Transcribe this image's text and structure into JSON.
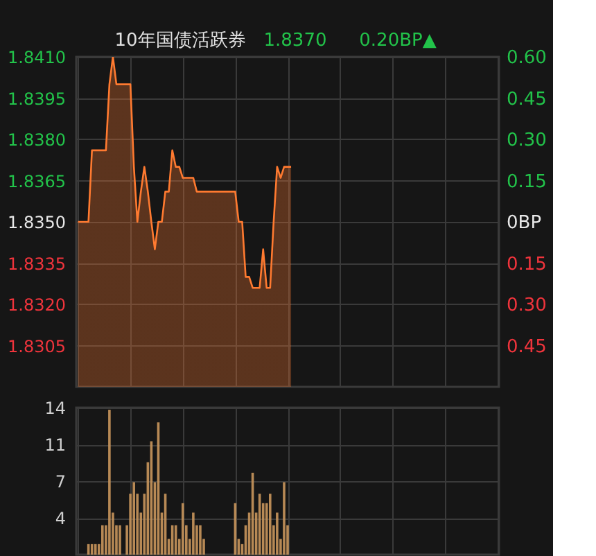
{
  "chart_data": [
    {
      "type": "line",
      "title": "10年国债活跃券",
      "annotations": [
        "1.8370",
        "0.20BP▲"
      ],
      "categories": [
        null,
        null,
        null,
        null,
        null,
        null,
        null,
        null,
        null,
        null,
        null,
        null,
        null,
        null,
        null,
        null,
        null,
        null,
        null,
        null,
        null,
        null,
        null,
        null,
        null,
        null,
        null,
        null,
        null,
        null,
        null,
        null,
        null,
        null,
        null,
        null,
        null,
        null,
        null,
        null,
        null,
        null,
        null,
        null,
        null,
        null,
        null,
        null,
        null,
        null,
        null,
        null,
        null,
        null,
        null,
        null,
        null,
        null,
        null,
        null,
        null,
        null,
        null,
        null,
        null,
        null,
        null,
        null,
        null,
        null,
        null,
        null,
        null,
        null,
        null,
        null,
        null,
        null,
        null,
        null,
        null,
        null,
        null,
        null,
        null,
        null,
        null,
        null,
        null,
        null,
        null,
        null,
        null,
        null,
        null,
        null,
        null,
        null,
        null,
        null,
        null,
        null,
        null,
        null,
        null,
        null,
        null,
        null,
        null,
        null,
        null,
        null,
        null,
        null,
        null,
        null,
        null,
        null,
        null,
        null,
        null
      ],
      "series": [
        {
          "type": "area",
          "color": "#ff7a30",
          "values": [
            1.835,
            1.835,
            1.835,
            1.835,
            1.8376,
            1.8376,
            1.8376,
            1.8376,
            1.8376,
            1.84,
            1.841,
            1.84,
            1.84,
            1.84,
            1.84,
            1.84,
            1.837,
            1.835,
            1.8361,
            1.837,
            1.8361,
            1.835,
            1.834,
            1.835,
            1.835,
            1.8361,
            1.8361,
            1.8376,
            1.837,
            1.837,
            1.8366,
            1.8366,
            1.8366,
            1.8366,
            1.8361,
            1.8361,
            1.8361,
            1.8361,
            1.8361,
            1.8361,
            1.8361,
            1.8361,
            1.8361,
            1.8361,
            1.8361,
            1.8361,
            1.835,
            1.835,
            1.833,
            1.833,
            1.8326,
            1.8326,
            1.8326,
            1.834,
            1.8326,
            1.8326,
            1.835,
            1.837,
            1.8366,
            1.837,
            1.837,
            1.837,
            null,
            null,
            null,
            null,
            null,
            null,
            null,
            null,
            null,
            null,
            null,
            null,
            null,
            null,
            null,
            null,
            null,
            null,
            null,
            null,
            null,
            null,
            null,
            null,
            null,
            null,
            null,
            null,
            null,
            null,
            null,
            null,
            null,
            null,
            null,
            null,
            null,
            null,
            null,
            null,
            null,
            null,
            null,
            null,
            null,
            null,
            null,
            null,
            null,
            null,
            null,
            null,
            null,
            null,
            null,
            null,
            null,
            null,
            null
          ]
        }
      ],
      "ylim": [
        1.829,
        1.841
      ],
      "yticks": [
        {
          "value": 1.8305,
          "label": "1.8305"
        },
        {
          "value": 1.832,
          "label": "1.8320"
        },
        {
          "value": 1.8335,
          "label": "1.8335"
        },
        {
          "value": 1.835,
          "label": "1.8350"
        },
        {
          "value": 1.8365,
          "label": "1.8365"
        },
        {
          "value": 1.838,
          "label": "1.8380"
        },
        {
          "value": 1.8395,
          "label": "1.8395"
        },
        {
          "value": 1.841,
          "label": "1.8410"
        }
      ],
      "y2lim": [
        -0.6,
        0.6
      ],
      "y2ticks": [
        {
          "value": -0.45,
          "label": "0.45"
        },
        {
          "value": -0.3,
          "label": "0.30"
        },
        {
          "value": -0.15,
          "label": "0.15"
        },
        {
          "value": 0,
          "label": "0BP"
        },
        {
          "value": 0.15,
          "label": "0.15"
        },
        {
          "value": 0.3,
          "label": "0.30"
        },
        {
          "value": 0.45,
          "label": "0.45"
        },
        {
          "value": 0.6,
          "label": "0.60"
        }
      ],
      "grid": true,
      "tick_labels": "y"
    },
    {
      "type": "bar",
      "categories": [
        null,
        null,
        null,
        null,
        null,
        null,
        null,
        null,
        null,
        null,
        null,
        null,
        null,
        null,
        null,
        null,
        null,
        null,
        null,
        null,
        null,
        null,
        null,
        null,
        null,
        null,
        null,
        null,
        null,
        null,
        null,
        null,
        null,
        null,
        null,
        null,
        null,
        null,
        null,
        null,
        null,
        null,
        null,
        null,
        null,
        null,
        null,
        null,
        null,
        null,
        null,
        null,
        null,
        null,
        null,
        null,
        null,
        null,
        null,
        null,
        null,
        null,
        null,
        null,
        null,
        null,
        null,
        null,
        null,
        null,
        null,
        null,
        null,
        null,
        null,
        null,
        null,
        null,
        null,
        null,
        null,
        null,
        null,
        null,
        null,
        null,
        null,
        null,
        null,
        null,
        null,
        null,
        null,
        null,
        null,
        null,
        null,
        null,
        null,
        null,
        null,
        null,
        null,
        null,
        null,
        null,
        null,
        null,
        null,
        null,
        null,
        null,
        null,
        null,
        null,
        null,
        null,
        null,
        null,
        null,
        null
      ],
      "series": [
        {
          "color": "#c9965c",
          "values": [
            null,
            null,
            null,
            1,
            1,
            1,
            1,
            2.8,
            2.8,
            13.8,
            4,
            2.8,
            2.8,
            null,
            2.8,
            5.8,
            6.9,
            5.8,
            4,
            5.8,
            8.8,
            10.8,
            6.9,
            12.6,
            4,
            5.8,
            1.5,
            2.8,
            2.8,
            1.5,
            4.9,
            2.8,
            1.5,
            4,
            2.8,
            2.8,
            1.5,
            null,
            null,
            null,
            null,
            null,
            null,
            null,
            null,
            4.9,
            1.5,
            1,
            2.8,
            4,
            7.8,
            4,
            5.8,
            4.9,
            4.9,
            5.8,
            2.8,
            4,
            1.5,
            6.9,
            2.8,
            null,
            null,
            null,
            null,
            null,
            null,
            null,
            null,
            null,
            null,
            null,
            null,
            null,
            null,
            null,
            null,
            null,
            null,
            null,
            null,
            null,
            null,
            null,
            null,
            null,
            null,
            null,
            null,
            null,
            null,
            null,
            null,
            null,
            null,
            null,
            null,
            null,
            null,
            null,
            null,
            null,
            null,
            null,
            null,
            null,
            null,
            null,
            null,
            null,
            null,
            null,
            null,
            null,
            null,
            null,
            null,
            null,
            null,
            null,
            null
          ]
        }
      ],
      "ylim": [
        0,
        14
      ],
      "yticks": [
        {
          "value": 3.5,
          "label": "4"
        },
        7,
        {
          "value": 10.5,
          "label": "11"
        },
        14
      ],
      "grid": true,
      "tick_labels": "y"
    }
  ]
}
